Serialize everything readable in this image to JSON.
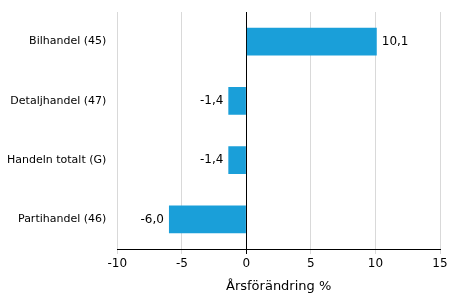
{
  "chart_data": {
    "type": "bar",
    "orientation": "horizontal",
    "categories": [
      "Bilhandel (45)",
      "Detaljhandel (47)",
      "Handeln totalt (G)",
      "Partihandel (46)"
    ],
    "values": [
      10.1,
      -1.4,
      -1.4,
      -6.0
    ],
    "value_labels": [
      "10,1",
      "-1,4",
      "-1,4",
      "-6,0"
    ],
    "color": "#1a9fd9",
    "xlabel": "Årsförändring %",
    "xlim": [
      -10,
      15
    ],
    "xticks": [
      -10,
      -5,
      0,
      5,
      10,
      15
    ],
    "grid": true,
    "data_labels": true
  }
}
